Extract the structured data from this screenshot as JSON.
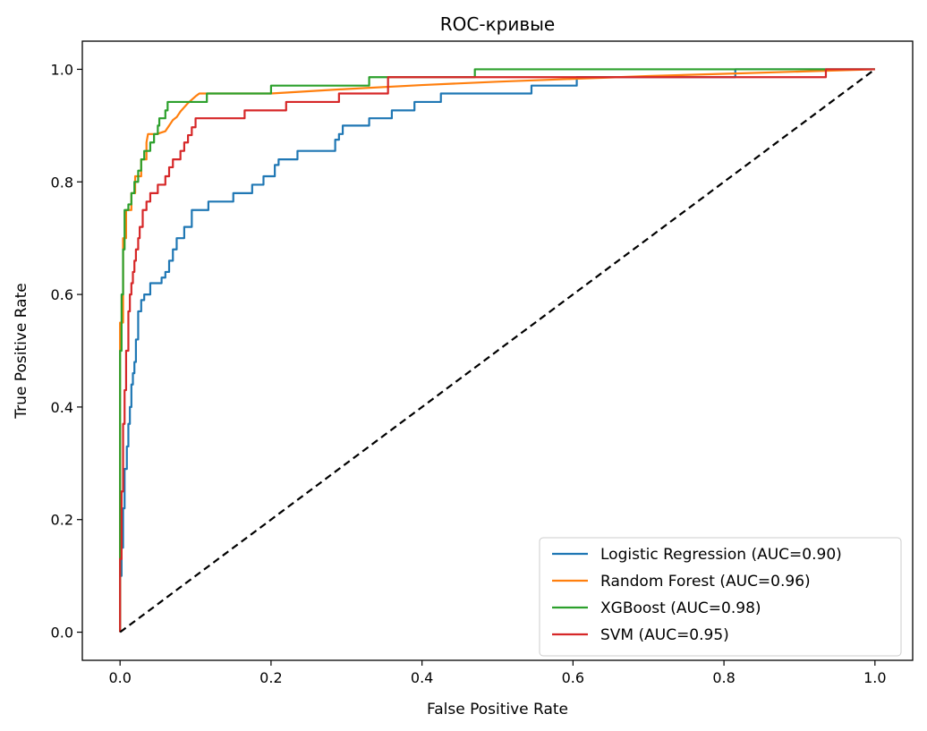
{
  "chart_data": {
    "type": "line",
    "title": "ROC-кривые",
    "xlabel": "False Positive Rate",
    "ylabel": "True Positive Rate",
    "xlim": [
      -0.05,
      1.05
    ],
    "ylim": [
      -0.05,
      1.05
    ],
    "xticks": [
      "0.0",
      "0.2",
      "0.4",
      "0.6",
      "0.8",
      "1.0"
    ],
    "yticks": [
      "0.0",
      "0.2",
      "0.4",
      "0.6",
      "0.8",
      "1.0"
    ],
    "grid": false,
    "legend_position": "lower-right",
    "series": [
      {
        "name": "Logistic Regression (AUC=0.90)",
        "color": "#1f77b4",
        "points": [
          [
            0,
            0
          ],
          [
            0,
            0.1
          ],
          [
            0.002,
            0.1
          ],
          [
            0.002,
            0.15
          ],
          [
            0.004,
            0.15
          ],
          [
            0.004,
            0.22
          ],
          [
            0.006,
            0.22
          ],
          [
            0.006,
            0.29
          ],
          [
            0.009,
            0.29
          ],
          [
            0.009,
            0.33
          ],
          [
            0.011,
            0.33
          ],
          [
            0.011,
            0.37
          ],
          [
            0.013,
            0.37
          ],
          [
            0.013,
            0.4
          ],
          [
            0.015,
            0.4
          ],
          [
            0.015,
            0.44
          ],
          [
            0.017,
            0.44
          ],
          [
            0.017,
            0.46
          ],
          [
            0.019,
            0.46
          ],
          [
            0.019,
            0.48
          ],
          [
            0.021,
            0.48
          ],
          [
            0.021,
            0.52
          ],
          [
            0.024,
            0.52
          ],
          [
            0.024,
            0.57
          ],
          [
            0.028,
            0.57
          ],
          [
            0.028,
            0.59
          ],
          [
            0.032,
            0.59
          ],
          [
            0.032,
            0.6
          ],
          [
            0.04,
            0.6
          ],
          [
            0.04,
            0.62
          ],
          [
            0.055,
            0.62
          ],
          [
            0.055,
            0.63
          ],
          [
            0.06,
            0.63
          ],
          [
            0.06,
            0.64
          ],
          [
            0.065,
            0.64
          ],
          [
            0.065,
            0.66
          ],
          [
            0.07,
            0.66
          ],
          [
            0.07,
            0.68
          ],
          [
            0.075,
            0.68
          ],
          [
            0.075,
            0.7
          ],
          [
            0.085,
            0.7
          ],
          [
            0.085,
            0.72
          ],
          [
            0.095,
            0.72
          ],
          [
            0.095,
            0.75
          ],
          [
            0.117,
            0.75
          ],
          [
            0.117,
            0.765
          ],
          [
            0.15,
            0.765
          ],
          [
            0.15,
            0.78
          ],
          [
            0.175,
            0.78
          ],
          [
            0.175,
            0.795
          ],
          [
            0.19,
            0.795
          ],
          [
            0.19,
            0.81
          ],
          [
            0.205,
            0.81
          ],
          [
            0.205,
            0.83
          ],
          [
            0.21,
            0.83
          ],
          [
            0.21,
            0.84
          ],
          [
            0.235,
            0.84
          ],
          [
            0.235,
            0.855
          ],
          [
            0.285,
            0.855
          ],
          [
            0.285,
            0.875
          ],
          [
            0.29,
            0.875
          ],
          [
            0.29,
            0.885
          ],
          [
            0.295,
            0.885
          ],
          [
            0.295,
            0.9
          ],
          [
            0.33,
            0.9
          ],
          [
            0.33,
            0.913
          ],
          [
            0.36,
            0.913
          ],
          [
            0.36,
            0.927
          ],
          [
            0.39,
            0.927
          ],
          [
            0.39,
            0.942
          ],
          [
            0.425,
            0.942
          ],
          [
            0.425,
            0.957
          ],
          [
            0.545,
            0.957
          ],
          [
            0.545,
            0.971
          ],
          [
            0.605,
            0.971
          ],
          [
            0.605,
            0.986
          ],
          [
            0.815,
            0.986
          ],
          [
            0.815,
            1.0
          ],
          [
            1.0,
            1.0
          ]
        ]
      },
      {
        "name": "Random Forest (AUC=0.96)",
        "color": "#ff7f0e",
        "points": [
          [
            0,
            0
          ],
          [
            0,
            0.55
          ],
          [
            0.004,
            0.55
          ],
          [
            0.004,
            0.7
          ],
          [
            0.008,
            0.7
          ],
          [
            0.008,
            0.75
          ],
          [
            0.015,
            0.75
          ],
          [
            0.015,
            0.78
          ],
          [
            0.02,
            0.78
          ],
          [
            0.02,
            0.81
          ],
          [
            0.028,
            0.81
          ],
          [
            0.028,
            0.84
          ],
          [
            0.035,
            0.84
          ],
          [
            0.035,
            0.855
          ],
          [
            0.035,
            0.87
          ],
          [
            0.037,
            0.885
          ],
          [
            0.05,
            0.885
          ],
          [
            0.053,
            0.887
          ],
          [
            0.06,
            0.89
          ],
          [
            0.065,
            0.9
          ],
          [
            0.07,
            0.91
          ],
          [
            0.075,
            0.915
          ],
          [
            0.08,
            0.925
          ],
          [
            0.09,
            0.94
          ],
          [
            0.1,
            0.952
          ],
          [
            0.105,
            0.957
          ],
          [
            0.2,
            0.957
          ],
          [
            0.3,
            0.965
          ],
          [
            0.4,
            0.972
          ],
          [
            0.5,
            0.978
          ],
          [
            0.6,
            0.983
          ],
          [
            0.7,
            0.988
          ],
          [
            0.8,
            0.992
          ],
          [
            0.9,
            0.996
          ],
          [
            1.0,
            1.0
          ]
        ]
      },
      {
        "name": "XGBoost (AUC=0.98)",
        "color": "#2ca02c",
        "points": [
          [
            0,
            0
          ],
          [
            0,
            0.5
          ],
          [
            0.002,
            0.5
          ],
          [
            0.002,
            0.6
          ],
          [
            0.004,
            0.6
          ],
          [
            0.004,
            0.68
          ],
          [
            0.006,
            0.68
          ],
          [
            0.006,
            0.75
          ],
          [
            0.011,
            0.75
          ],
          [
            0.011,
            0.76
          ],
          [
            0.015,
            0.76
          ],
          [
            0.015,
            0.78
          ],
          [
            0.019,
            0.78
          ],
          [
            0.019,
            0.8
          ],
          [
            0.024,
            0.8
          ],
          [
            0.024,
            0.82
          ],
          [
            0.028,
            0.82
          ],
          [
            0.028,
            0.84
          ],
          [
            0.032,
            0.84
          ],
          [
            0.032,
            0.855
          ],
          [
            0.04,
            0.855
          ],
          [
            0.04,
            0.87
          ],
          [
            0.045,
            0.87
          ],
          [
            0.045,
            0.885
          ],
          [
            0.05,
            0.885
          ],
          [
            0.05,
            0.9
          ],
          [
            0.052,
            0.9
          ],
          [
            0.052,
            0.913
          ],
          [
            0.06,
            0.913
          ],
          [
            0.06,
            0.927
          ],
          [
            0.063,
            0.927
          ],
          [
            0.063,
            0.942
          ],
          [
            0.115,
            0.942
          ],
          [
            0.115,
            0.957
          ],
          [
            0.2,
            0.957
          ],
          [
            0.2,
            0.971
          ],
          [
            0.33,
            0.971
          ],
          [
            0.33,
            0.986
          ],
          [
            0.47,
            0.986
          ],
          [
            0.47,
            1.0
          ],
          [
            1.0,
            1.0
          ]
        ]
      },
      {
        "name": "SVM (AUC=0.95)",
        "color": "#d62728",
        "points": [
          [
            0,
            0
          ],
          [
            0,
            0.13
          ],
          [
            0.002,
            0.13
          ],
          [
            0.002,
            0.25
          ],
          [
            0.004,
            0.25
          ],
          [
            0.004,
            0.37
          ],
          [
            0.006,
            0.37
          ],
          [
            0.006,
            0.43
          ],
          [
            0.008,
            0.43
          ],
          [
            0.008,
            0.5
          ],
          [
            0.011,
            0.5
          ],
          [
            0.011,
            0.57
          ],
          [
            0.013,
            0.57
          ],
          [
            0.013,
            0.6
          ],
          [
            0.015,
            0.6
          ],
          [
            0.015,
            0.62
          ],
          [
            0.017,
            0.62
          ],
          [
            0.017,
            0.64
          ],
          [
            0.019,
            0.64
          ],
          [
            0.019,
            0.66
          ],
          [
            0.021,
            0.66
          ],
          [
            0.021,
            0.68
          ],
          [
            0.024,
            0.68
          ],
          [
            0.024,
            0.7
          ],
          [
            0.026,
            0.7
          ],
          [
            0.026,
            0.72
          ],
          [
            0.03,
            0.72
          ],
          [
            0.03,
            0.75
          ],
          [
            0.035,
            0.75
          ],
          [
            0.035,
            0.765
          ],
          [
            0.04,
            0.765
          ],
          [
            0.04,
            0.78
          ],
          [
            0.05,
            0.78
          ],
          [
            0.05,
            0.795
          ],
          [
            0.06,
            0.795
          ],
          [
            0.06,
            0.81
          ],
          [
            0.065,
            0.81
          ],
          [
            0.065,
            0.826
          ],
          [
            0.07,
            0.826
          ],
          [
            0.07,
            0.84
          ],
          [
            0.08,
            0.84
          ],
          [
            0.08,
            0.855
          ],
          [
            0.085,
            0.855
          ],
          [
            0.085,
            0.87
          ],
          [
            0.09,
            0.87
          ],
          [
            0.09,
            0.883
          ],
          [
            0.095,
            0.883
          ],
          [
            0.095,
            0.897
          ],
          [
            0.1,
            0.897
          ],
          [
            0.1,
            0.913
          ],
          [
            0.165,
            0.913
          ],
          [
            0.165,
            0.927
          ],
          [
            0.22,
            0.927
          ],
          [
            0.22,
            0.942
          ],
          [
            0.29,
            0.942
          ],
          [
            0.29,
            0.957
          ],
          [
            0.355,
            0.957
          ],
          [
            0.355,
            0.986
          ],
          [
            0.935,
            0.986
          ],
          [
            0.935,
            1.0
          ],
          [
            1.0,
            1.0
          ]
        ]
      },
      {
        "name": "",
        "color": "#000000",
        "dashed": true,
        "points": [
          [
            0,
            0
          ],
          [
            1,
            1
          ]
        ]
      }
    ]
  }
}
